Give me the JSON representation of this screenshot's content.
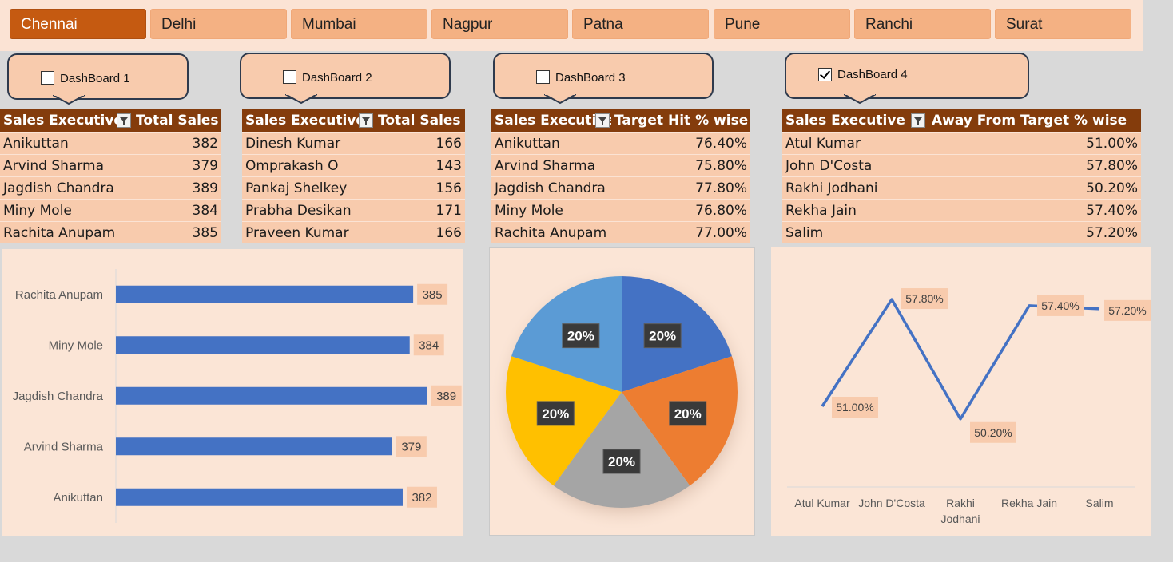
{
  "slicer": {
    "items": [
      "Chennai",
      "Delhi",
      "Mumbai",
      "Nagpur",
      "Patna",
      "Pune",
      "Ranchi",
      "Surat"
    ],
    "selected": "Chennai"
  },
  "dashboards": [
    {
      "label": "DashBoard 1",
      "checked": false
    },
    {
      "label": "DashBoard 2",
      "checked": false
    },
    {
      "label": "DashBoard 3",
      "checked": false
    },
    {
      "label": "DashBoard 4",
      "checked": true
    }
  ],
  "tables": {
    "t1": {
      "headers": [
        "Sales Executive",
        "Total Sales"
      ],
      "rows": [
        [
          "Anikuttan",
          "382"
        ],
        [
          "Arvind Sharma",
          "379"
        ],
        [
          "Jagdish Chandra",
          "389"
        ],
        [
          "Miny Mole",
          "384"
        ],
        [
          "Rachita Anupam",
          "385"
        ]
      ]
    },
    "t2": {
      "headers": [
        "Sales Executive",
        "Total Sales"
      ],
      "rows": [
        [
          "Dinesh Kumar",
          "166"
        ],
        [
          "Omprakash O",
          "143"
        ],
        [
          "Pankaj Shelkey",
          "156"
        ],
        [
          "Prabha Desikan",
          "171"
        ],
        [
          "Praveen Kumar",
          "166"
        ]
      ]
    },
    "t3": {
      "headers": [
        "Sales Executive",
        "Target Hit % wise"
      ],
      "rows": [
        [
          "Anikuttan",
          "76.40%"
        ],
        [
          "Arvind Sharma",
          "75.80%"
        ],
        [
          "Jagdish Chandra",
          "77.80%"
        ],
        [
          "Miny Mole",
          "76.80%"
        ],
        [
          "Rachita Anupam",
          "77.00%"
        ]
      ]
    },
    "t4": {
      "headers": [
        "Sales Executive",
        "Away From Target % wise"
      ],
      "rows": [
        [
          "Atul Kumar",
          "51.00%"
        ],
        [
          "John D'Costa",
          "57.80%"
        ],
        [
          "Rakhi Jodhani",
          "50.20%"
        ],
        [
          "Rekha Jain",
          "57.40%"
        ],
        [
          "Salim",
          "57.20%"
        ]
      ]
    }
  },
  "chart_data": [
    {
      "type": "bar",
      "orientation": "horizontal",
      "categories": [
        "Rachita Anupam",
        "Miny Mole",
        "Jagdish Chandra",
        "Arvind Sharma",
        "Anikuttan"
      ],
      "values": [
        385,
        384,
        389,
        379,
        382
      ],
      "data_labels": [
        "385",
        "384",
        "389",
        "379",
        "382"
      ],
      "color": "#4472c4",
      "title": "",
      "xlabel": "",
      "ylabel": ""
    },
    {
      "type": "pie",
      "labels": [
        "20%",
        "20%",
        "20%",
        "20%",
        "20%"
      ],
      "values": [
        20,
        20,
        20,
        20,
        20
      ],
      "colors": [
        "#4472c4",
        "#ed7d31",
        "#a5a5a5",
        "#ffc000",
        "#5b9bd5"
      ],
      "title": ""
    },
    {
      "type": "line",
      "categories": [
        "Atul Kumar",
        "John D'Costa",
        "Rakhi Jodhani",
        "Rekha Jain",
        "Salim"
      ],
      "category_labels": [
        [
          "Atul Kumar"
        ],
        [
          "John D'Costa"
        ],
        [
          "Rakhi",
          "Jodhani"
        ],
        [
          "Rekha Jain"
        ],
        [
          "Salim"
        ]
      ],
      "values": [
        51.0,
        57.8,
        50.2,
        57.4,
        57.2
      ],
      "data_labels": [
        "51.00%",
        "57.80%",
        "50.20%",
        "57.40%",
        "57.20%"
      ],
      "color": "#4472c4",
      "title": "",
      "xlabel": "",
      "ylabel": ""
    }
  ]
}
